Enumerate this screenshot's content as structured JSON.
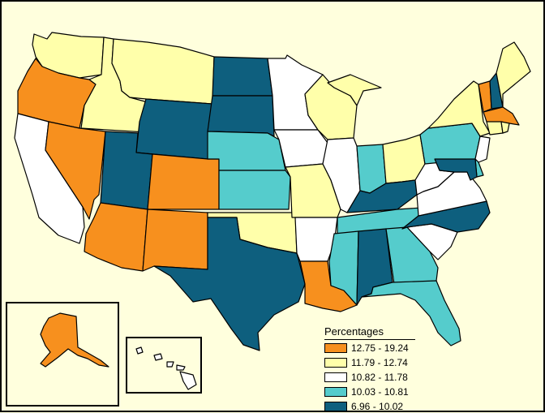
{
  "legend": {
    "title": "Percentages",
    "classes": [
      {
        "label": "12.75 - 19.24",
        "color": "#f7901e"
      },
      {
        "label": "11.79 - 12.74",
        "color": "#ffffaa"
      },
      {
        "label": "10.82 - 11.78",
        "color": "#ffffff"
      },
      {
        "label": "10.03 - 10.81",
        "color": "#55cccc"
      },
      {
        "label": "6.96 - 10.02",
        "color": "#0e5f7e"
      }
    ]
  },
  "state_classes": {
    "WA": 1,
    "OR": 0,
    "CA": 2,
    "ID": 1,
    "NV": 0,
    "MT": 1,
    "WY": 4,
    "UT": 4,
    "CO": 0,
    "AZ": 0,
    "NM": 0,
    "ND": 4,
    "SD": 4,
    "NE": 3,
    "KS": 3,
    "OK": 1,
    "TX": 4,
    "MN": 2,
    "IA": 2,
    "MO": 1,
    "AR": 2,
    "LA": 0,
    "WI": 1,
    "IL": 2,
    "MI": 1,
    "IN": 3,
    "OH": 1,
    "KY": 4,
    "TN": 3,
    "MS": 3,
    "AL": 4,
    "GA": 3,
    "FL": 3,
    "SC": 2,
    "NC": 4,
    "VA": 2,
    "WV": 2,
    "PA": 3,
    "NY": 1,
    "VT": 0,
    "NH": 4,
    "ME": 1,
    "MA": 0,
    "RI": 1,
    "CT": 1,
    "NJ": 2,
    "DE": 3,
    "MD": 4,
    "AK": 0,
    "HI": 2
  }
}
